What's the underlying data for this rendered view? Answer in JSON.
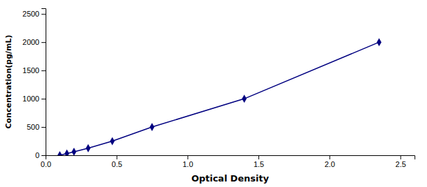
{
  "chart_data": {
    "type": "line",
    "x": [
      0.1,
      0.15,
      0.2,
      0.3,
      0.47,
      0.75,
      1.4,
      2.35
    ],
    "values": [
      0,
      31,
      62,
      125,
      250,
      500,
      1000,
      2000
    ],
    "color": "#000080",
    "marker": "diamond",
    "line_style": "solid",
    "xlabel": "Optical Density",
    "ylabel": "Concentration(pg/mL)",
    "xlim": [
      0,
      2.6
    ],
    "ylim": [
      0,
      2600
    ],
    "xticks": [
      {
        "value": 0,
        "label": "0.0"
      },
      0.5,
      {
        "value": 1,
        "label": "1.0"
      },
      1.5,
      {
        "value": 2,
        "label": "2.0"
      },
      2.5
    ],
    "yticks": [
      0,
      500,
      1000,
      1500,
      2000,
      2500
    ],
    "grid": false
  }
}
